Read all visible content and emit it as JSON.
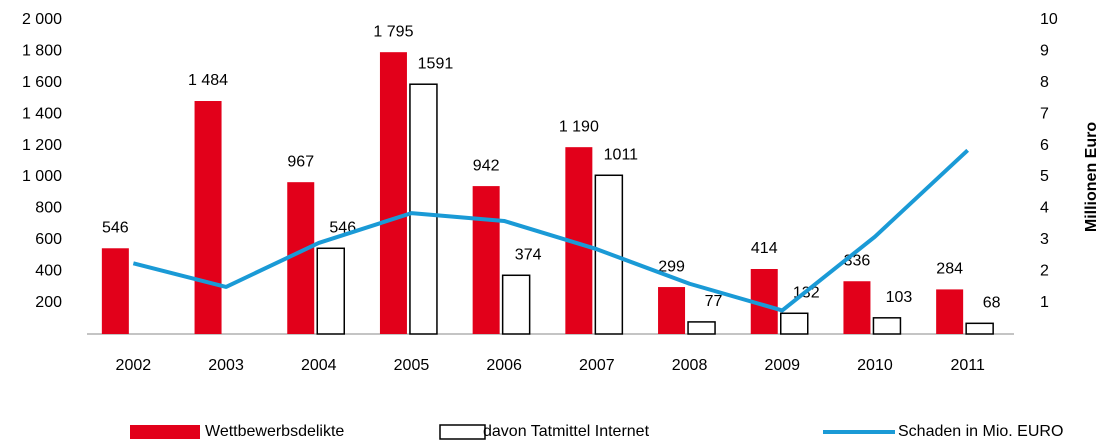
{
  "chart_data": {
    "type": "bar",
    "y2label": "Millionen Euro",
    "categories": [
      "2002",
      "2003",
      "2004",
      "2005",
      "2006",
      "2007",
      "2008",
      "2009",
      "2010",
      "2011"
    ],
    "series": [
      {
        "name": "Wettbewerbsdelikte",
        "type": "bar",
        "color": "#e2001a",
        "values": [
          546,
          1484,
          967,
          1795,
          942,
          1190,
          299,
          414,
          336,
          284
        ],
        "value_labels": [
          "546",
          "1 484",
          "967",
          "1 795",
          "942",
          "1 190",
          "299",
          "414",
          "336",
          "284"
        ]
      },
      {
        "name": "davon Tatmittel Internet",
        "type": "bar",
        "color": "#ffffff",
        "values": [
          null,
          null,
          546,
          1591,
          374,
          1011,
          77,
          132,
          103,
          68
        ]
      },
      {
        "name": "Schaden in Mio. EURO",
        "type": "line",
        "color": "#1a9ad6",
        "axis": "y2",
        "values": [
          2.25,
          1.5,
          2.9,
          3.85,
          3.6,
          2.7,
          1.6,
          0.75,
          3.1,
          5.85
        ]
      }
    ],
    "ylim": [
      0,
      2000
    ],
    "yticks": [
      200,
      400,
      600,
      800,
      {
        "value": 1000,
        "label": "1 000"
      },
      {
        "value": 1200,
        "label": "1 200"
      },
      {
        "value": 1400,
        "label": "1 400"
      },
      {
        "value": 1600,
        "label": "1 600"
      },
      {
        "value": 1800,
        "label": "1 800"
      },
      {
        "value": 2000,
        "label": "2 000"
      }
    ],
    "y2lim": [
      0,
      10
    ],
    "y2ticks": [
      1,
      2,
      3,
      4,
      5,
      6,
      7,
      8,
      9,
      10
    ],
    "grid": false,
    "legend": "bottom"
  }
}
